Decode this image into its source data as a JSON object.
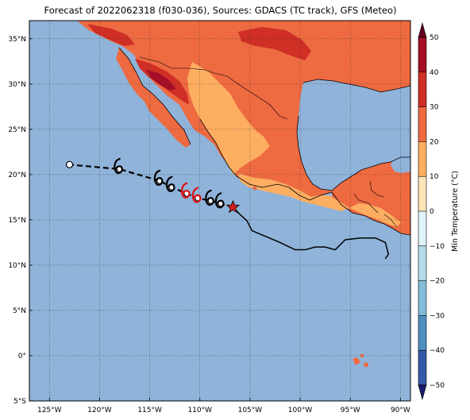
{
  "title": "Forecast of 2022062318 (f030-036), Sources: GDACS (TC track), GFS (Meteo)",
  "map": {
    "lon_range": [
      -127,
      -89
    ],
    "lat_range": [
      -5,
      37
    ],
    "lat_ticks": [
      {
        "value": 35,
        "label": "35°N"
      },
      {
        "value": 30,
        "label": "30°N"
      },
      {
        "value": 25,
        "label": "25°N"
      },
      {
        "value": 20,
        "label": "20°N"
      },
      {
        "value": 15,
        "label": "15°N"
      },
      {
        "value": 10,
        "label": "10°N"
      },
      {
        "value": 5,
        "label": "5°N"
      },
      {
        "value": 0,
        "label": "0°"
      },
      {
        "value": -5,
        "label": "5°S"
      }
    ],
    "lon_ticks": [
      {
        "value": -125,
        "label": "125°W"
      },
      {
        "value": -120,
        "label": "120°W"
      },
      {
        "value": -115,
        "label": "115°W"
      },
      {
        "value": -110,
        "label": "110°W"
      },
      {
        "value": -105,
        "label": "105°W"
      },
      {
        "value": -100,
        "label": "100°W"
      },
      {
        "value": -95,
        "label": "95°W"
      },
      {
        "value": -90,
        "label": "90°W"
      }
    ],
    "ocean_color": "#8fb3d9",
    "grid": true
  },
  "track": {
    "past_track": [
      [
        -106.7,
        16.4
      ],
      [
        -106.0,
        15.6
      ],
      [
        -105.3,
        14.9
      ],
      [
        -104.8,
        13.8
      ],
      [
        -103.5,
        13.2
      ],
      [
        -102,
        12.5
      ],
      [
        -100.5,
        11.7
      ],
      [
        -99.5,
        11.7
      ],
      [
        -98.5,
        12.0
      ],
      [
        -97.5,
        12.0
      ],
      [
        -96.5,
        11.7
      ],
      [
        -95.5,
        12.8
      ],
      [
        -94.0,
        13.0
      ],
      [
        -92.5,
        13.0
      ],
      [
        -91.5,
        12.5
      ],
      [
        -91.2,
        11.2
      ],
      [
        -91.5,
        10.7
      ]
    ],
    "forecast_track": [
      [
        -106.7,
        16.4
      ],
      [
        -107.9,
        16.8
      ],
      [
        -108.9,
        17.1
      ],
      [
        -110.2,
        17.4
      ],
      [
        -111.3,
        17.9
      ],
      [
        -112.8,
        18.6
      ],
      [
        -114.0,
        19.3
      ],
      [
        -118.0,
        20.6
      ],
      [
        -123.0,
        21.1
      ]
    ],
    "current_position": [
      -106.7,
      16.4
    ],
    "symbols": [
      {
        "lon": -107.9,
        "lat": 16.8,
        "color": "#000000"
      },
      {
        "lon": -108.9,
        "lat": 17.1,
        "color": "#000000"
      },
      {
        "lon": -110.2,
        "lat": 17.4,
        "color": "#e01010"
      },
      {
        "lon": -111.3,
        "lat": 17.9,
        "color": "#e01010"
      },
      {
        "lon": -112.8,
        "lat": 18.6,
        "color": "#000000"
      },
      {
        "lon": -114.0,
        "lat": 19.3,
        "color": "#000000"
      },
      {
        "lon": -118.0,
        "lat": 20.6,
        "color": "#000000"
      }
    ],
    "end_point": [
      -123.0,
      21.1
    ]
  },
  "colorbar": {
    "label": "Min Temperature (°C)",
    "ticks": [
      "50",
      "40",
      "30",
      "20",
      "10",
      "0",
      "−10",
      "−20",
      "−30",
      "−40",
      "−50"
    ],
    "colors": [
      "#67001f",
      "#a50f26",
      "#cf2f25",
      "#ee6a41",
      "#fdae61",
      "#fee5b8",
      "#e0f3f8",
      "#b3dbe9",
      "#84bcd9",
      "#4f8fc0",
      "#3658a7",
      "#232c8f",
      "#1a1a6f"
    ]
  },
  "colors": {
    "land_hot": "#ee6a41",
    "land_warm": "#fdae61",
    "land_very_hot": "#cf2f25",
    "land_extreme": "#a50f26",
    "star": "#d62020"
  }
}
